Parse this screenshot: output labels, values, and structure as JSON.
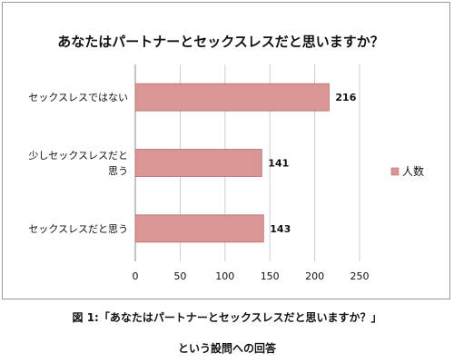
{
  "chart_data": {
    "type": "bar",
    "orientation": "horizontal",
    "title": "あなたはパートナーとセックスレスだと思いますか？",
    "categories": [
      [
        "セックスレスではない"
      ],
      [
        "少しセックスレスだと",
        "思う"
      ],
      [
        "セックスレスだと思う"
      ]
    ],
    "series": [
      {
        "name": "人数",
        "values": [
          216,
          141,
          143
        ],
        "color": "#d99694"
      }
    ],
    "xlim": [
      0,
      250
    ],
    "xticks": [
      0,
      50,
      100,
      150,
      200,
      250
    ],
    "grid": true,
    "legend_position": "right",
    "bar_color": "#d99694",
    "bar_edge_color": "#b76f6c",
    "grid_color": "#cccccc"
  },
  "caption": {
    "line1": "図 1:「あなたはパートナーとセックスレスだと思いますか？」",
    "line2": "という設問への回答"
  }
}
